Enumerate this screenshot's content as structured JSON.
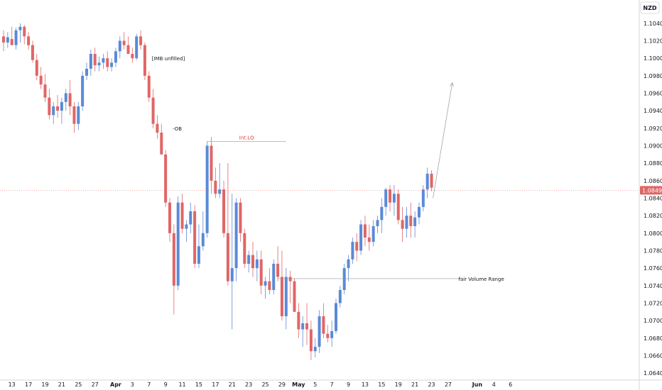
{
  "currency_label": "NZD",
  "chart_data": {
    "type": "candlestick",
    "ylim": [
      1.0632,
      1.1065
    ],
    "grid": false,
    "colors": {
      "up": "#5b8ad6",
      "down": "#e06666",
      "axis": "#d1d4dc",
      "annotation": "#9598a1",
      "highlight": "#e53935"
    },
    "current_price": "1.08490",
    "y_ticks": [
      "1.10400",
      "1.10200",
      "1.10000",
      "1.09800",
      "1.09600",
      "1.09400",
      "1.09200",
      "1.09000",
      "1.08800",
      "1.08600",
      "1.08400",
      "1.08200",
      "1.08000",
      "1.07800",
      "1.07600",
      "1.07400",
      "1.07200",
      "1.07000",
      "1.06800",
      "1.06600",
      "1.06400"
    ],
    "x_ticks": [
      {
        "label": "13",
        "bold": false,
        "index": 2
      },
      {
        "label": "17",
        "bold": false,
        "index": 6
      },
      {
        "label": "19",
        "bold": false,
        "index": 10
      },
      {
        "label": "21",
        "bold": false,
        "index": 14
      },
      {
        "label": "25",
        "bold": false,
        "index": 18
      },
      {
        "label": "27",
        "bold": false,
        "index": 22
      },
      {
        "label": "Apr",
        "bold": true,
        "index": 27
      },
      {
        "label": "3",
        "bold": false,
        "index": 31
      },
      {
        "label": "7",
        "bold": false,
        "index": 35
      },
      {
        "label": "9",
        "bold": false,
        "index": 39
      },
      {
        "label": "11",
        "bold": false,
        "index": 43
      },
      {
        "label": "15",
        "bold": false,
        "index": 47
      },
      {
        "label": "17",
        "bold": false,
        "index": 51
      },
      {
        "label": "21",
        "bold": false,
        "index": 55
      },
      {
        "label": "23",
        "bold": false,
        "index": 59
      },
      {
        "label": "25",
        "bold": false,
        "index": 63
      },
      {
        "label": "29",
        "bold": false,
        "index": 67
      },
      {
        "label": "May",
        "bold": true,
        "index": 71
      },
      {
        "label": "5",
        "bold": false,
        "index": 75
      },
      {
        "label": "7",
        "bold": false,
        "index": 79
      },
      {
        "label": "9",
        "bold": false,
        "index": 83
      },
      {
        "label": "13",
        "bold": false,
        "index": 87
      },
      {
        "label": "15",
        "bold": false,
        "index": 91
      },
      {
        "label": "19",
        "bold": false,
        "index": 95
      },
      {
        "label": "21",
        "bold": false,
        "index": 99
      },
      {
        "label": "23",
        "bold": false,
        "index": 103
      },
      {
        "label": "27",
        "bold": false,
        "index": 107
      },
      {
        "label": "Jun",
        "bold": true,
        "index": 114
      },
      {
        "label": "4",
        "bold": false,
        "index": 118
      },
      {
        "label": "6",
        "bold": false,
        "index": 122
      }
    ],
    "candles": [
      [
        1.1025,
        1.1032,
        1.1008,
        1.1018
      ],
      [
        1.1018,
        1.103,
        1.1012,
        1.1024
      ],
      [
        1.1022,
        1.1036,
        1.1015,
        1.1015
      ],
      [
        1.1015,
        1.1035,
        1.101,
        1.1032
      ],
      [
        1.1032,
        1.104,
        1.1018,
        1.1036
      ],
      [
        1.1036,
        1.1038,
        1.1016,
        1.1025
      ],
      [
        1.1025,
        1.103,
        1.101,
        1.1015
      ],
      [
        1.1015,
        1.102,
        1.0995,
        1.0998
      ],
      [
        1.0998,
        1.1005,
        1.0975,
        1.098
      ],
      [
        1.098,
        1.099,
        1.0965,
        1.097
      ],
      [
        1.097,
        1.0982,
        1.095,
        1.0955
      ],
      [
        1.0955,
        1.0965,
        1.093,
        1.0935
      ],
      [
        1.0935,
        1.095,
        1.0925,
        1.0945
      ],
      [
        1.0945,
        1.0958,
        1.0932,
        1.094
      ],
      [
        1.094,
        1.0955,
        1.0925,
        1.095
      ],
      [
        1.095,
        1.0965,
        1.094,
        1.096
      ],
      [
        1.096,
        1.0975,
        1.0935,
        1.0945
      ],
      [
        1.0945,
        1.095,
        1.0915,
        1.0925
      ],
      [
        1.0925,
        1.095,
        1.0918,
        1.0945
      ],
      [
        1.0945,
        1.0985,
        1.094,
        1.098
      ],
      [
        1.098,
        1.0995,
        1.0975,
        1.0988
      ],
      [
        1.0988,
        1.101,
        1.098,
        1.1005
      ],
      [
        1.1005,
        1.1012,
        1.0985,
        1.0992
      ],
      [
        1.0992,
        1.1002,
        1.0985,
        1.0995
      ],
      [
        1.0995,
        1.1005,
        1.0988,
        1.1
      ],
      [
        1.1,
        1.1008,
        1.0985,
        1.099
      ],
      [
        1.099,
        1.1,
        1.0985,
        1.0995
      ],
      [
        1.0995,
        1.1012,
        1.099,
        1.1008
      ],
      [
        1.1008,
        1.1025,
        1.1,
        1.102
      ],
      [
        1.102,
        1.103,
        1.101,
        1.1015
      ],
      [
        1.1015,
        1.1025,
        1.1005,
        1.1005
      ],
      [
        1.1005,
        1.1012,
        1.0995,
        1.1
      ],
      [
        1.1,
        1.1028,
        1.0998,
        1.1025
      ],
      [
        1.1025,
        1.1032,
        1.101,
        1.1015
      ],
      [
        1.1015,
        1.1018,
        1.0975,
        1.098
      ],
      [
        1.098,
        1.0985,
        1.095,
        1.0955
      ],
      [
        1.0955,
        1.0965,
        1.092,
        1.0925
      ],
      [
        1.0925,
        1.0935,
        1.0908,
        1.0915
      ],
      [
        1.0915,
        1.0925,
        1.089,
        1.089
      ],
      [
        1.089,
        1.0895,
        1.083,
        1.0835
      ],
      [
        1.0835,
        1.084,
        1.079,
        1.08
      ],
      [
        1.08,
        1.081,
        1.0707,
        1.074
      ],
      [
        1.074,
        1.0842,
        1.0735,
        1.0835
      ],
      [
        1.0835,
        1.0845,
        1.08,
        1.0805
      ],
      [
        1.0805,
        1.0815,
        1.079,
        1.081
      ],
      [
        1.081,
        1.0835,
        1.08,
        1.0825
      ],
      [
        1.0825,
        1.0832,
        1.076,
        1.0765
      ],
      [
        1.0765,
        1.081,
        1.076,
        1.0785
      ],
      [
        1.0785,
        1.0825,
        1.078,
        1.08
      ],
      [
        1.08,
        1.0905,
        1.0795,
        1.09
      ],
      [
        1.09,
        1.091,
        1.0845,
        1.086
      ],
      [
        1.086,
        1.0875,
        1.084,
        1.0845
      ],
      [
        1.0845,
        1.088,
        1.084,
        1.085
      ],
      [
        1.085,
        1.086,
        1.0795,
        1.08
      ],
      [
        1.08,
        1.088,
        1.074,
        1.0745
      ],
      [
        1.0745,
        1.0845,
        1.069,
        1.076
      ],
      [
        1.076,
        1.084,
        1.0745,
        1.0835
      ],
      [
        1.0835,
        1.084,
        1.079,
        1.08
      ],
      [
        1.08,
        1.0805,
        1.076,
        1.0765
      ],
      [
        1.0765,
        1.078,
        1.0755,
        1.0775
      ],
      [
        1.0775,
        1.079,
        1.075,
        1.076
      ],
      [
        1.076,
        1.078,
        1.0745,
        1.077
      ],
      [
        1.077,
        1.078,
        1.073,
        1.074
      ],
      [
        1.074,
        1.075,
        1.0725,
        1.0745
      ],
      [
        1.0745,
        1.076,
        1.073,
        1.0735
      ],
      [
        1.0735,
        1.077,
        1.073,
        1.0765
      ],
      [
        1.0765,
        1.0785,
        1.0745,
        1.075
      ],
      [
        1.075,
        1.078,
        1.07,
        1.0705
      ],
      [
        1.0705,
        1.076,
        1.069,
        1.075
      ],
      [
        1.075,
        1.0757,
        1.072,
        1.0745
      ],
      [
        1.0745,
        1.0748,
        1.071,
        1.071
      ],
      [
        1.071,
        1.072,
        1.068,
        1.069
      ],
      [
        1.069,
        1.0705,
        1.067,
        1.0697
      ],
      [
        1.0697,
        1.072,
        1.0672,
        1.069
      ],
      [
        1.069,
        1.07,
        1.0655,
        1.0665
      ],
      [
        1.0665,
        1.068,
        1.0658,
        1.067
      ],
      [
        1.067,
        1.0712,
        1.0663,
        1.0705
      ],
      [
        1.0705,
        1.072,
        1.068,
        1.0685
      ],
      [
        1.0685,
        1.0695,
        1.0675,
        1.068
      ],
      [
        1.068,
        1.07,
        1.067,
        1.0688
      ],
      [
        1.0688,
        1.0725,
        1.0685,
        1.072
      ],
      [
        1.072,
        1.074,
        1.0715,
        1.0735
      ],
      [
        1.0735,
        1.0765,
        1.073,
        1.076
      ],
      [
        1.076,
        1.0775,
        1.0745,
        1.077
      ],
      [
        1.077,
        1.0795,
        1.0765,
        1.079
      ],
      [
        1.079,
        1.08,
        1.0768,
        1.078
      ],
      [
        1.078,
        1.0815,
        1.0775,
        1.081
      ],
      [
        1.081,
        1.082,
        1.0785,
        1.0795
      ],
      [
        1.0795,
        1.081,
        1.078,
        1.079
      ],
      [
        1.079,
        1.0815,
        1.0785,
        1.0808
      ],
      [
        1.0808,
        1.082,
        1.08,
        1.0815
      ],
      [
        1.0815,
        1.084,
        1.08,
        1.083
      ],
      [
        1.083,
        1.0852,
        1.082,
        1.085
      ],
      [
        1.085,
        1.0855,
        1.0825,
        1.0835
      ],
      [
        1.0835,
        1.0855,
        1.082,
        1.0845
      ],
      [
        1.0845,
        1.085,
        1.081,
        1.0815
      ],
      [
        1.0815,
        1.083,
        1.079,
        1.0805
      ],
      [
        1.0805,
        1.083,
        1.0795,
        1.082
      ],
      [
        1.082,
        1.0835,
        1.0795,
        1.0808
      ],
      [
        1.0808,
        1.0825,
        1.0795,
        1.0818
      ],
      [
        1.0818,
        1.0835,
        1.081,
        1.083
      ],
      [
        1.083,
        1.0855,
        1.0825,
        1.085
      ],
      [
        1.085,
        1.0875,
        1.084,
        1.0868
      ],
      [
        1.0868,
        1.0872,
        1.0848,
        1.0852
      ]
    ],
    "annotations": {
      "imb_label": "[IMB unfilled]",
      "ob_label": "-OB",
      "intlq_label": "Int.LQ",
      "fvr_label": "fair Volume Range"
    }
  }
}
